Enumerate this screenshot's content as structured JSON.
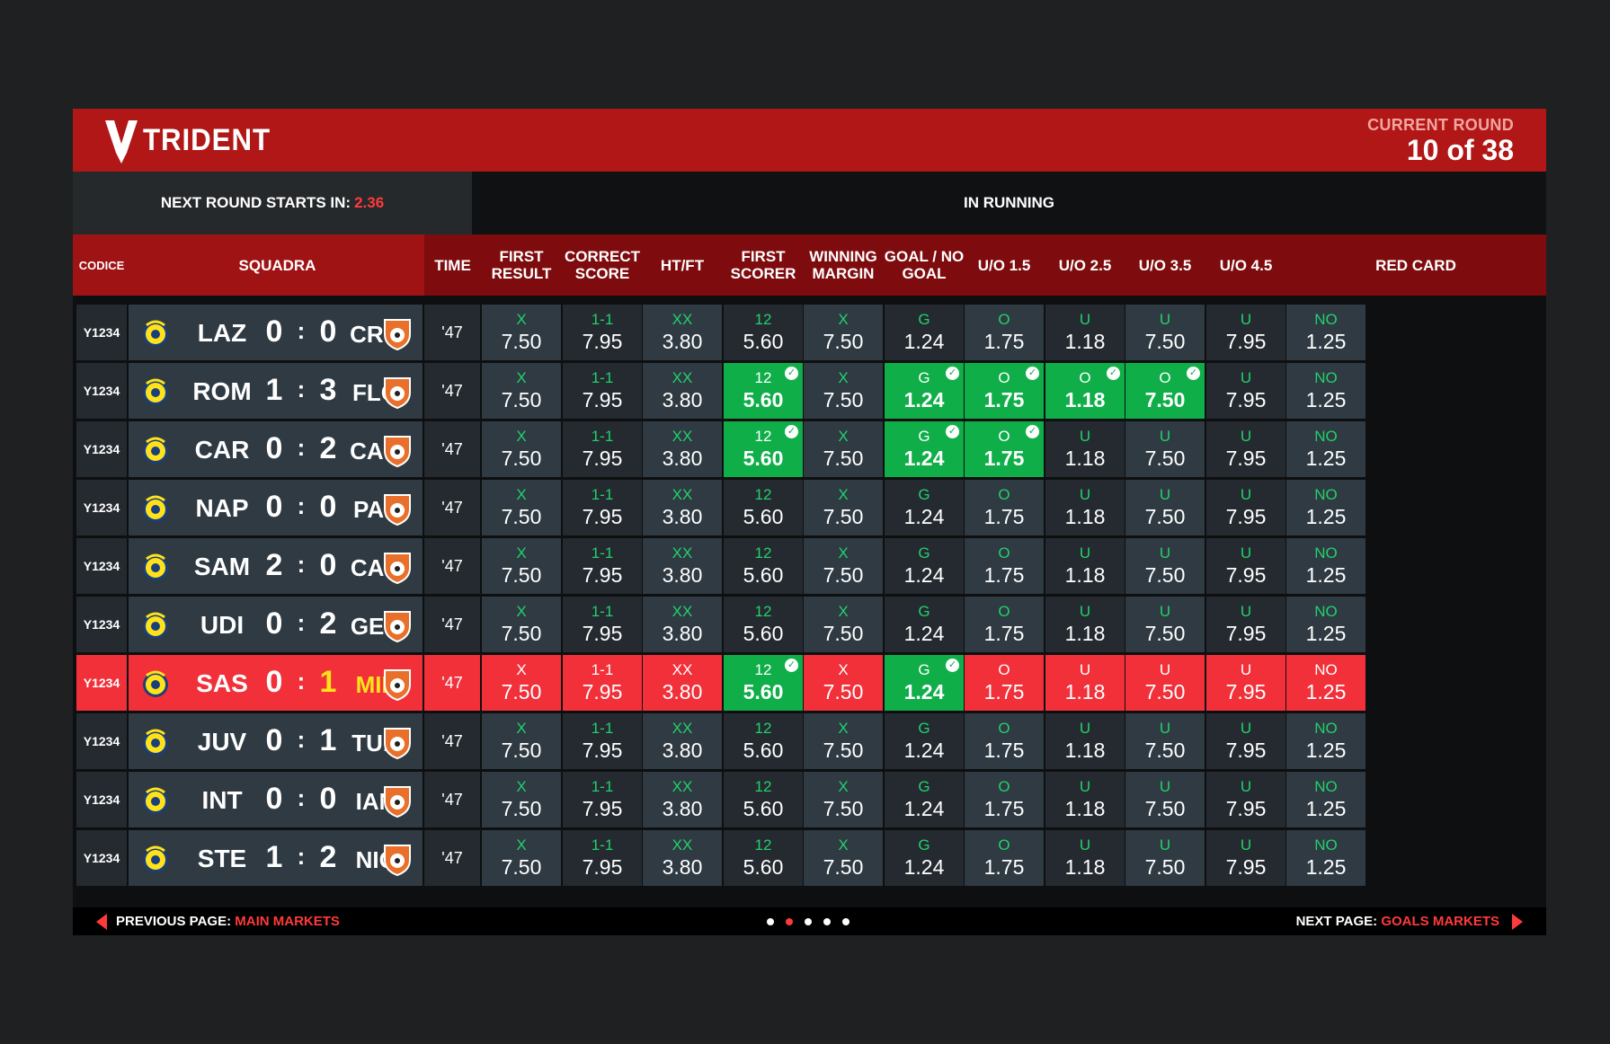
{
  "brand": {
    "name": "TRIDENT"
  },
  "round": {
    "label": "CURRENT ROUND",
    "value": "10 of 38"
  },
  "next_round": {
    "label": "NEXT ROUND STARTS IN:",
    "time": "2.36"
  },
  "in_running_label": "IN RUNNING",
  "columns": {
    "code": "CODICE",
    "team": "SQUADRA",
    "time": "TIME",
    "markets": [
      "FIRST RESULT",
      "CORRECT SCORE",
      "HT/FT",
      "FIRST SCORER",
      "WINNING MARGIN",
      "GOAL / NO GOAL",
      "U/O 1.5",
      "U/O 2.5",
      "U/O 3.5",
      "U/O 4.5",
      "RED CARD"
    ]
  },
  "default_odds": [
    {
      "label": "X",
      "value": "7.50"
    },
    {
      "label": "1-1",
      "value": "7.95"
    },
    {
      "label": "XX",
      "value": "3.80"
    },
    {
      "label": "12",
      "value": "5.60"
    },
    {
      "label": "X",
      "value": "7.50"
    },
    {
      "label": "G",
      "value": "1.24"
    },
    {
      "label": "O",
      "value": "1.75"
    },
    {
      "label": "U",
      "value": "1.18"
    },
    {
      "label": "U",
      "value": "7.50"
    },
    {
      "label": "U",
      "value": "7.95"
    },
    {
      "label": "NO",
      "value": "1.25"
    }
  ],
  "rows": [
    {
      "code": "Y1234",
      "home": "LAZ",
      "home_score": "0",
      "away_score": "0",
      "away": "CRO",
      "time": "'47",
      "winners": [],
      "overrides": {}
    },
    {
      "code": "Y1234",
      "home": "ROM",
      "home_score": "1",
      "away_score": "3",
      "away": "FLO",
      "time": "'47",
      "winners": [
        3,
        5,
        6,
        7,
        8
      ],
      "overrides": {
        "7": "O",
        "8": "O"
      }
    },
    {
      "code": "Y1234",
      "home": "CAR",
      "home_score": "0",
      "away_score": "2",
      "away": "CAG",
      "time": "'47",
      "winners": [
        3,
        5,
        6
      ],
      "overrides": {}
    },
    {
      "code": "Y1234",
      "home": "NAP",
      "home_score": "0",
      "away_score": "0",
      "away": "PAL",
      "time": "'47",
      "winners": [],
      "overrides": {}
    },
    {
      "code": "Y1234",
      "home": "SAM",
      "home_score": "2",
      "away_score": "0",
      "away": "CAR",
      "time": "'47",
      "winners": [],
      "overrides": {}
    },
    {
      "code": "Y1234",
      "home": "UDI",
      "home_score": "0",
      "away_score": "2",
      "away": "GEN",
      "time": "'47",
      "winners": [],
      "overrides": {}
    },
    {
      "code": "Y1234",
      "home": "SAS",
      "home_score": "0",
      "away_score": "1",
      "away": "MIL",
      "time": "'47",
      "winners": [
        3,
        5
      ],
      "overrides": {},
      "highlight": true
    },
    {
      "code": "Y1234",
      "home": "JUV",
      "home_score": "0",
      "away_score": "1",
      "away": "TUR",
      "time": "'47",
      "winners": [],
      "overrides": {}
    },
    {
      "code": "Y1234",
      "home": "INT",
      "home_score": "0",
      "away_score": "0",
      "away": "IAN",
      "time": "'47",
      "winners": [],
      "overrides": {}
    },
    {
      "code": "Y1234",
      "home": "STE",
      "home_score": "1",
      "away_score": "2",
      "away": "NIC",
      "time": "'47",
      "winners": [],
      "overrides": {}
    }
  ],
  "footer": {
    "prev_label": "PREVIOUS PAGE:",
    "prev_value": "MAIN MARKETS",
    "next_label": "NEXT PAGE:",
    "next_value": "GOALS MARKETS",
    "page_dots": 5,
    "active_dot": 1
  },
  "colors": {
    "brand_red": "#b01716",
    "header_dark_red": "#7e0c0e",
    "win_green": "#0fae49",
    "highlight_red": "#f1303a",
    "odd_label_green": "#22d16c"
  },
  "icons": {
    "home_badge": "yellow-football-crest-icon",
    "away_badge": "orange-shield-crest-icon",
    "check": "check-icon"
  }
}
